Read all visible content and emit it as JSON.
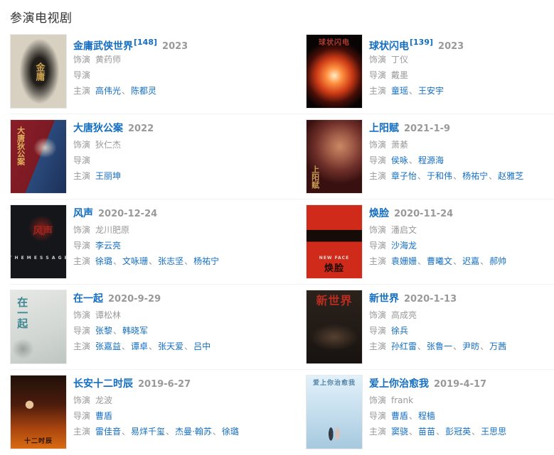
{
  "page": {
    "heading": "参演电视剧"
  },
  "labels": {
    "role": "饰演",
    "director": "导演",
    "cast": "主演"
  },
  "separator": "、",
  "colors": {
    "link": "#136ec2",
    "muted": "#999999",
    "heading": "#333333",
    "divider": "#f2f2f2"
  },
  "shows": [
    {
      "title": "金庸武侠世界",
      "ref": "[148]",
      "year": "2023",
      "role": "黄药师",
      "directors": [],
      "cast": [
        {
          "name": "高伟光",
          "link": true
        },
        {
          "name": "陈都灵",
          "link": true
        }
      ],
      "poster": {
        "alt": "金庸武侠世界海报",
        "bg": "#d8d1c2",
        "art": "radial-gradient(ellipse 50% 62% at 52% 50%, #211e1a 0%, #211e1a 30%, rgba(33,30,26,0.5) 52%, rgba(33,30,26,0) 72%)",
        "labels": [
          {
            "text": "金庸",
            "color": "#c9a050",
            "size": 13,
            "cls": "vert-center"
          }
        ]
      }
    },
    {
      "title": "球状闪电",
      "ref": "[139]",
      "year": "2023",
      "role": "丁仪",
      "directors": [
        {
          "name": "戴墨",
          "link": false
        }
      ],
      "cast": [
        {
          "name": "童瑶",
          "link": true
        },
        {
          "name": "王安宇",
          "link": true
        }
      ],
      "poster": {
        "alt": "球状闪电海报",
        "bg": "#080404",
        "art": "radial-gradient(circle at 50% 56%, #ffeec8 0%, #ff9040 16%, #cc3a16 36%, rgba(80,16,8,0.85) 55%, rgba(8,4,4,0) 72%)",
        "labels": [
          {
            "text": "球状闪电",
            "color": "#b03a30",
            "size": 10,
            "cls": "top"
          }
        ]
      }
    },
    {
      "title": "大唐狄公案",
      "ref": "",
      "year": "2022",
      "role": "狄仁杰",
      "directors": [],
      "cast": [
        {
          "name": "王丽坤",
          "link": true
        }
      ],
      "poster": {
        "alt": "大唐狄公案海报",
        "bg": "linear-gradient(112deg, #8a1e28 0%, #7c1a24 52%, #2a4a7c 52%, #1c3058 100%)",
        "art": "radial-gradient(ellipse 30% 20% at 62% 38%, rgba(230,220,205,0.85), rgba(230,220,205,0) 70%)",
        "labels": [
          {
            "text": "大唐狄公案",
            "color": "#e0b25c",
            "size": 11,
            "cls": "vert-left"
          }
        ]
      }
    },
    {
      "title": "上阳赋",
      "ref": "",
      "year": "2021-1-9",
      "role": "萧綦",
      "directors": [
        {
          "name": "侯咏",
          "link": true
        },
        {
          "name": "程源海",
          "link": true
        }
      ],
      "cast": [
        {
          "name": "章子怡",
          "link": true
        },
        {
          "name": "于和伟",
          "link": true
        },
        {
          "name": "杨祐宁",
          "link": true
        },
        {
          "name": "赵雅芝",
          "link": true
        }
      ],
      "poster": {
        "alt": "上阳赋海报",
        "bg": "#38100f",
        "art": "radial-gradient(circle at 60% 36%, #c98a64 0%, #a4604a 20%, #70302a 42%, rgba(56,16,15,0) 66%)",
        "labels": [
          {
            "text": "上阳赋",
            "color": "#c89a52",
            "size": 11,
            "cls": "vert-bl"
          }
        ]
      }
    },
    {
      "title": "风声",
      "ref": "",
      "year": "2020-12-24",
      "role": "龙川肥原",
      "directors": [
        {
          "name": "李云亮",
          "link": true
        }
      ],
      "cast": [
        {
          "name": "徐璐",
          "link": true
        },
        {
          "name": "文咏珊",
          "link": true
        },
        {
          "name": "张志坚",
          "link": true
        },
        {
          "name": "杨祐宁",
          "link": true
        }
      ],
      "poster": {
        "alt": "风声海报",
        "bg": "#15161a",
        "art": "radial-gradient(ellipse 34% 26% at 56% 32%, rgba(150,32,28,0.9), rgba(21,22,26,0) 70%)",
        "labels": [
          {
            "text": "风声",
            "color": "#9c2620",
            "size": 14,
            "cls": "center"
          },
          {
            "text": "T H E  M E S S A G E",
            "color": "#cfd3d8",
            "size": 6,
            "cls": "bottom2"
          }
        ]
      }
    },
    {
      "title": "焕脸",
      "ref": "",
      "year": "2020-11-24",
      "role": "潘启文",
      "directors": [
        {
          "name": "沙海龙",
          "link": true
        }
      ],
      "cast": [
        {
          "name": "袁姗姗",
          "link": true
        },
        {
          "name": "曹曦文",
          "link": true
        },
        {
          "name": "迟嘉",
          "link": true
        },
        {
          "name": "郝帅",
          "link": true
        }
      ],
      "poster": {
        "alt": "焕脸海报",
        "bg": "#cf2a1a",
        "art": "linear-gradient(180deg, rgba(0,0,0,0) 34%, #150c08 34%, #150c08 50%, rgba(0,0,0,0) 50%)",
        "labels": [
          {
            "text": "NEW FACE",
            "color": "#e8d8d0",
            "size": 6,
            "cls": "bottom2"
          },
          {
            "text": "焕脸",
            "color": "#1d0d08",
            "size": 13,
            "cls": "bottom"
          }
        ]
      }
    },
    {
      "title": "在一起",
      "ref": "",
      "year": "2020-9-29",
      "role": "谭松林",
      "directors": [
        {
          "name": "张黎",
          "link": true
        },
        {
          "name": "韩晓军",
          "link": true
        }
      ],
      "cast": [
        {
          "name": "张嘉益",
          "link": true
        },
        {
          "name": "谭卓",
          "link": true
        },
        {
          "name": "张天爱",
          "link": true
        },
        {
          "name": "吕中",
          "link": true
        }
      ],
      "poster": {
        "alt": "在一起海报",
        "bg": "linear-gradient(160deg, #e6e8e5 0%, #d3d8d4 55%, #bfc6c2 100%)",
        "art": "radial-gradient(ellipse 28% 20% at 22% 80%, rgba(110,118,115,0.55), rgba(0,0,0,0) 70%)",
        "labels": [
          {
            "text": "在一起",
            "color": "#3e8691",
            "size": 15,
            "cls": "vert-left"
          }
        ]
      }
    },
    {
      "title": "新世界",
      "ref": "",
      "year": "2020-1-13",
      "role": "高成亮",
      "directors": [
        {
          "name": "徐兵",
          "link": true
        }
      ],
      "cast": [
        {
          "name": "孙红雷",
          "link": true
        },
        {
          "name": "张鲁一",
          "link": true
        },
        {
          "name": "尹昉",
          "link": true
        },
        {
          "name": "万茜",
          "link": true
        }
      ],
      "poster": {
        "alt": "新世界海报",
        "bg": "linear-gradient(180deg, #2c221c 0%, #181310 100%)",
        "art": "radial-gradient(ellipse 62% 26% at 50% 64%, rgba(140,104,76,0.5), rgba(0,0,0,0) 70%)",
        "labels": [
          {
            "text": "新世界",
            "color": "#bb2d20",
            "size": 16,
            "cls": "top"
          }
        ]
      }
    },
    {
      "title": "长安十二时辰",
      "ref": "",
      "year": "2019-6-27",
      "role": "龙波",
      "directors": [
        {
          "name": "曹盾",
          "link": true
        }
      ],
      "cast": [
        {
          "name": "雷佳音",
          "link": true
        },
        {
          "name": "易烊千玺",
          "link": true
        },
        {
          "name": "杰曼·翰苏",
          "link": true
        },
        {
          "name": "徐璐",
          "link": true
        }
      ],
      "poster": {
        "alt": "长安十二时辰海报",
        "bg": "linear-gradient(180deg, #20110a 0%, #4c1c0c 40%, #a8440f 72%, #d96c12 100%)",
        "art": "radial-gradient(circle 9px at 34% 40%, #e8c49a 0%, #e8c49a 60%, rgba(0,0,0,0) 66%)",
        "labels": [
          {
            "text": "十二时辰",
            "color": "#2a1208",
            "size": 9,
            "cls": "bottom"
          }
        ]
      }
    },
    {
      "title": "爱上你治愈我",
      "ref": "",
      "year": "2019-4-17",
      "role": "frank",
      "directors": [
        {
          "name": "曹盾",
          "link": true
        },
        {
          "name": "程樯",
          "link": true
        }
      ],
      "cast": [
        {
          "name": "窦骁",
          "link": true
        },
        {
          "name": "苗苗",
          "link": true
        },
        {
          "name": "彭冠英",
          "link": true
        },
        {
          "name": "王思思",
          "link": true
        }
      ],
      "poster": {
        "alt": "爱上你治愈我海报",
        "bg": "linear-gradient(180deg, #e2f1fa 0%, #c2dcec 55%, #a6c9de 100%)",
        "art": "radial-gradient(ellipse 7% 15% at 44% 80%, #333b46 0%, #333b46 58%, rgba(0,0,0,0) 62%), radial-gradient(ellipse 7% 14% at 56% 80%, #d8c2bc 0%, #d8c2bc 58%, rgba(0,0,0,0) 62%)",
        "labels": [
          {
            "text": "爱上你治愈我",
            "color": "#5584a8",
            "size": 9,
            "cls": "top"
          }
        ]
      }
    }
  ]
}
